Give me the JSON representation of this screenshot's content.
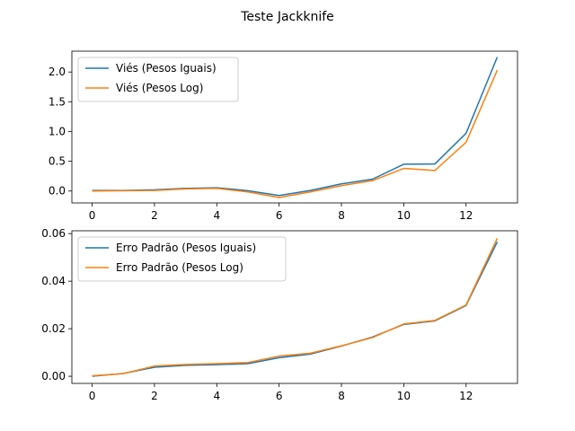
{
  "figure": {
    "suptitle": "Teste Jackknife"
  },
  "chart_data": [
    {
      "type": "line",
      "title": "",
      "xlabel": "",
      "ylabel": "",
      "x": [
        0,
        1,
        2,
        3,
        4,
        5,
        6,
        7,
        8,
        9,
        10,
        11,
        12,
        13
      ],
      "xlim": [
        -0.65,
        13.65
      ],
      "ylim": [
        -0.2,
        2.35
      ],
      "xticks": [
        0,
        2,
        4,
        6,
        8,
        10,
        12
      ],
      "yticks": [
        0.0,
        0.5,
        1.0,
        1.5,
        2.0
      ],
      "ytick_labels": [
        "0.0",
        "0.5",
        "1.0",
        "1.5",
        "2.0"
      ],
      "legend_position": "upper-left",
      "series": [
        {
          "name": "Viés (Pesos Iguais)",
          "color": "#1f77b4",
          "values": [
            0.01,
            0.01,
            0.02,
            0.045,
            0.055,
            0.005,
            -0.075,
            0.01,
            0.12,
            0.2,
            0.45,
            0.455,
            0.97,
            2.25
          ]
        },
        {
          "name": "Viés (Pesos Log)",
          "color": "#ff7f0e",
          "values": [
            0.0,
            0.005,
            0.01,
            0.035,
            0.045,
            -0.015,
            -0.11,
            -0.015,
            0.09,
            0.175,
            0.38,
            0.345,
            0.82,
            2.03
          ]
        }
      ]
    },
    {
      "type": "line",
      "title": "",
      "xlabel": "",
      "ylabel": "",
      "x": [
        0,
        1,
        2,
        3,
        4,
        5,
        6,
        7,
        8,
        9,
        10,
        11,
        12,
        13
      ],
      "xlim": [
        -0.65,
        13.65
      ],
      "ylim": [
        -0.003,
        0.0612
      ],
      "xticks": [
        0,
        2,
        4,
        6,
        8,
        10,
        12
      ],
      "yticks": [
        0.0,
        0.02,
        0.04,
        0.06
      ],
      "ytick_labels": [
        "0.00",
        "0.02",
        "0.04",
        "0.06"
      ],
      "legend_position": "upper-left",
      "series": [
        {
          "name": "Erro Padrão (Pesos Iguais)",
          "color": "#1f77b4",
          "values": [
            0.0,
            0.0012,
            0.0038,
            0.0046,
            0.0049,
            0.0053,
            0.0078,
            0.0093,
            0.0127,
            0.0165,
            0.0218,
            0.0233,
            0.0298,
            0.0565
          ]
        },
        {
          "name": "Erro Padrão (Pesos Log)",
          "color": "#ff7f0e",
          "values": [
            0.0002,
            0.0011,
            0.0043,
            0.005,
            0.0053,
            0.0058,
            0.0085,
            0.0097,
            0.0128,
            0.0163,
            0.022,
            0.0235,
            0.03,
            0.058
          ]
        }
      ]
    }
  ]
}
